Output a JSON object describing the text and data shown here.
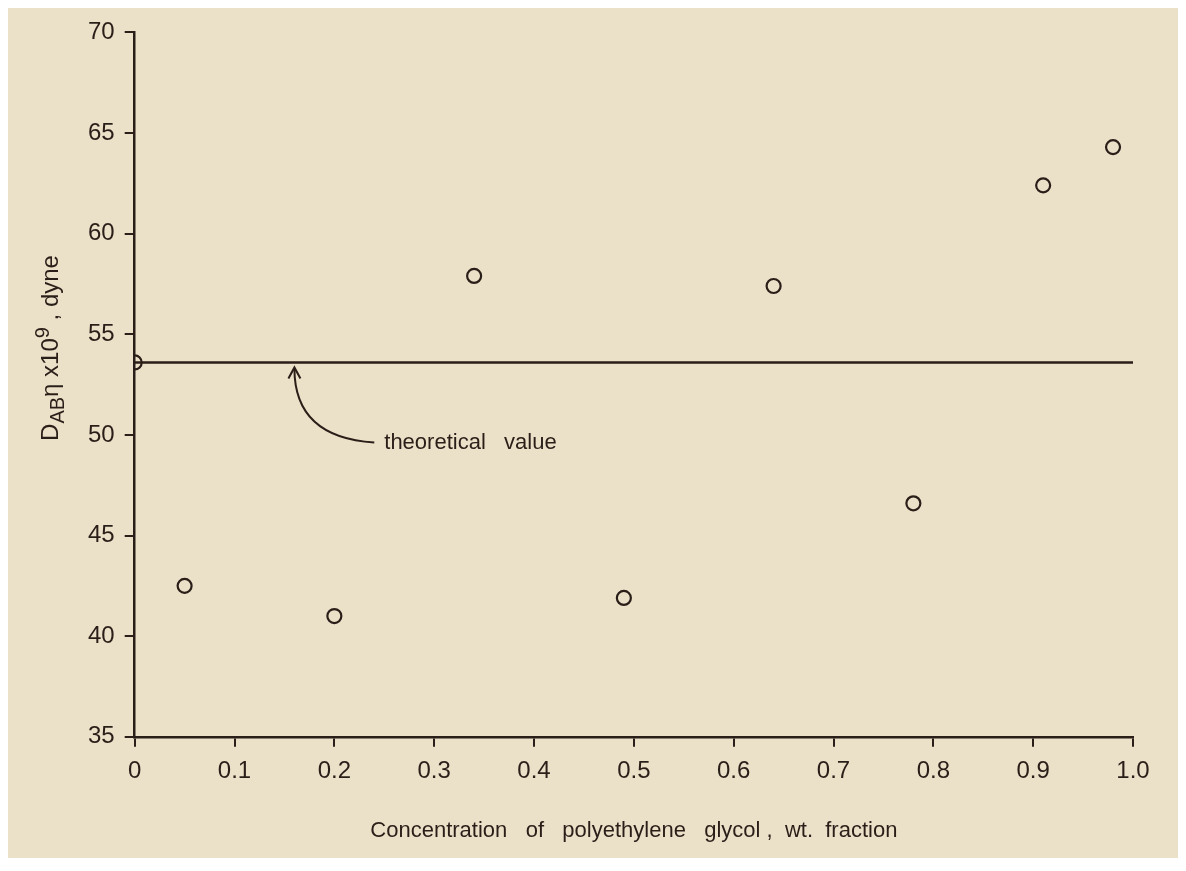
{
  "chart_data": {
    "type": "scatter",
    "xlabel": "Concentration   of   polyethylene   glycol ,  wt.  fraction",
    "ylabel": "D$_{AB}$η x10$^{9}$  ,  dyne",
    "x": [
      0,
      0.05,
      0.2,
      0.34,
      0.49,
      0.64,
      0.78,
      0.91,
      0.98
    ],
    "series": [
      {
        "color": "#2a1e18",
        "values": [
          53.6,
          42.5,
          41.0,
          57.9,
          41.9,
          57.4,
          46.6,
          62.4,
          64.3
        ]
      }
    ],
    "xlim": [
      0,
      1
    ],
    "xticks": [
      0,
      0.1,
      0.2,
      0.3,
      0.4,
      0.5,
      0.6,
      0.7,
      0.8,
      0.9,
      {
        "value": 1,
        "label": "1.0"
      }
    ],
    "ylim": [
      35,
      70
    ],
    "yticks": [
      35,
      40,
      45,
      50,
      55,
      60,
      65,
      70
    ],
    "ref_lines": [
      {
        "axis": "y",
        "value": 53.6,
        "label": "theoretical   value",
        "color": "#2a1e18",
        "line_style": "solid"
      }
    ],
    "grid": false,
    "legend": false,
    "marker": "circle"
  }
}
